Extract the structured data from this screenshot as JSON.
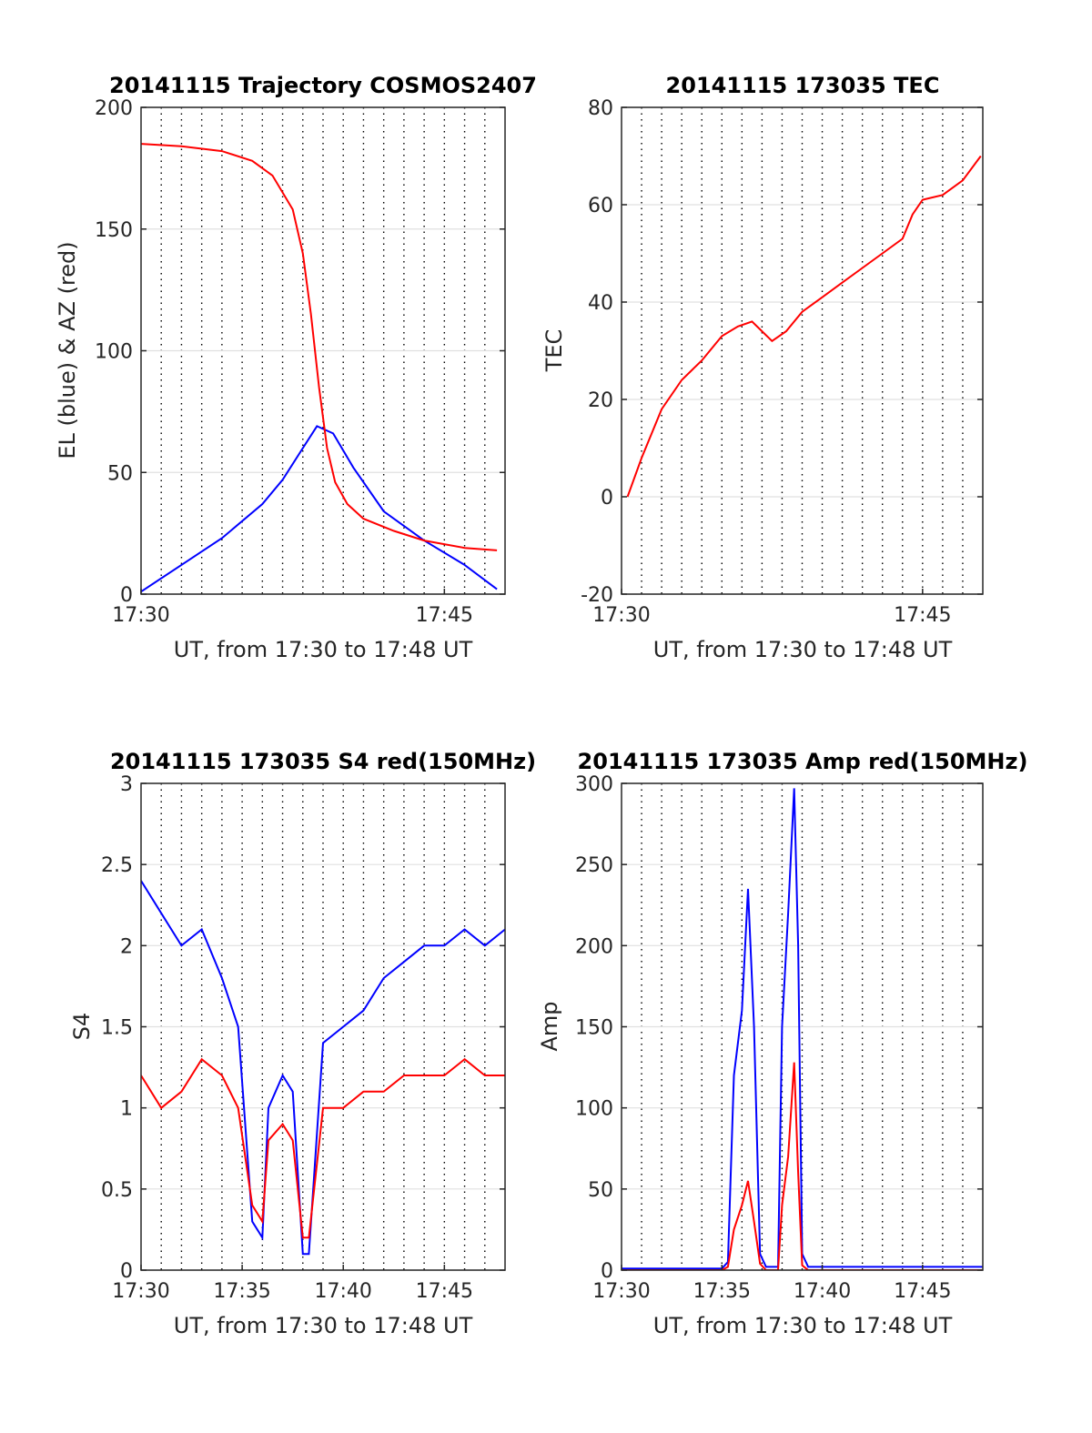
{
  "colors": {
    "red": "#ff0000",
    "blue": "#0000ff",
    "grid": "#000000",
    "axis": "#262626"
  },
  "chart_data": [
    {
      "type": "line",
      "title": "20141115 Trajectory COSMOS2407",
      "xlabel": "UT, from 17:30 to 17:48 UT",
      "ylabel": "EL (blue) & AZ (red)",
      "xlim": [
        "17:30",
        "17:48"
      ],
      "ylim": [
        0,
        200
      ],
      "yticks": [
        "0",
        "50",
        "100",
        "150",
        "200"
      ],
      "xticks": [
        "17:30",
        "17:45"
      ],
      "grid": "vertical dotted every minute; horizontal at y ticks",
      "series": [
        {
          "color": "#0000ff",
          "x": [
            0.0,
            2.0,
            4.0,
            6.0,
            7.0,
            8.0,
            8.7,
            9.5,
            10.5,
            12.0,
            14.0,
            16.0,
            17.6
          ],
          "y": [
            1,
            12,
            23,
            37,
            47,
            60,
            69,
            66,
            52,
            34,
            22,
            12,
            2
          ]
        },
        {
          "color": "#ff0000",
          "x": [
            0.0,
            2.0,
            4.0,
            5.5,
            6.5,
            7.5,
            8.0,
            8.4,
            8.8,
            9.2,
            9.6,
            10.2,
            11.0,
            12.5,
            14.0,
            16.0,
            17.6
          ],
          "y": [
            185,
            184,
            182,
            178,
            172,
            158,
            140,
            115,
            85,
            60,
            46,
            37,
            31,
            26,
            22,
            19,
            18
          ]
        }
      ]
    },
    {
      "type": "line",
      "title": "20141115 173035 TEC",
      "xlabel": "UT, from 17:30 to 17:48 UT",
      "ylabel": "TEC",
      "xlim": [
        "17:30",
        "17:48"
      ],
      "ylim": [
        -20,
        80
      ],
      "yticks": [
        "-20",
        "0",
        "20",
        "40",
        "60",
        "80"
      ],
      "xticks": [
        "17:30",
        "17:45"
      ],
      "series": [
        {
          "color": "#ff0000",
          "x": [
            0.3,
            1.0,
            2.0,
            3.0,
            4.0,
            5.0,
            5.8,
            6.5,
            7.0,
            7.5,
            8.2,
            9.0,
            10.0,
            11.0,
            12.0,
            13.0,
            14.0,
            14.5,
            15.0,
            16.0,
            17.0,
            17.9
          ],
          "y": [
            0,
            8,
            18,
            24,
            28,
            33,
            35,
            36,
            34,
            32,
            34,
            38,
            41,
            44,
            47,
            50,
            53,
            58,
            61,
            62,
            65,
            70
          ]
        }
      ]
    },
    {
      "type": "line",
      "title": "20141115 173035 S4 red(150MHz)",
      "xlabel": "UT, from 17:30 to 17:48 UT",
      "ylabel": "S4",
      "xlim": [
        "17:30",
        "17:48"
      ],
      "ylim": [
        0,
        3
      ],
      "yticks": [
        "0",
        "0.5",
        "1",
        "1.5",
        "2",
        "2.5",
        "3"
      ],
      "xticks": [
        "17:30",
        "17:35",
        "17:40",
        "17:45"
      ],
      "series": [
        {
          "color": "#0000ff",
          "description_free": true,
          "x": [
            0,
            1,
            2,
            3,
            4,
            4.8,
            5.5,
            6.0,
            6.3,
            7.0,
            7.5,
            8.0,
            8.3,
            9.0,
            10.0,
            11.0,
            12.0,
            13.0,
            14.0,
            15.0,
            16.0,
            17.0,
            18.0
          ],
          "y": [
            2.4,
            2.2,
            2.0,
            2.1,
            1.8,
            1.5,
            0.3,
            0.2,
            1.0,
            1.2,
            1.1,
            0.1,
            0.1,
            1.4,
            1.5,
            1.6,
            1.8,
            1.9,
            2.0,
            2.0,
            2.1,
            2.0,
            2.1
          ]
        },
        {
          "color": "#ff0000",
          "x": [
            0,
            1,
            2,
            3,
            4,
            4.8,
            5.5,
            6.0,
            6.3,
            7.0,
            7.5,
            8.0,
            8.3,
            9.0,
            10.0,
            11.0,
            12.0,
            13.0,
            14.0,
            15.0,
            16.0,
            17.0,
            18.0
          ],
          "y": [
            1.2,
            1.0,
            1.1,
            1.3,
            1.2,
            1.0,
            0.4,
            0.3,
            0.8,
            0.9,
            0.8,
            0.2,
            0.2,
            1.0,
            1.0,
            1.1,
            1.1,
            1.2,
            1.2,
            1.2,
            1.3,
            1.2,
            1.2
          ]
        }
      ]
    },
    {
      "type": "line",
      "title": "20141115 173035 Amp red(150MHz)",
      "xlabel": "UT, from 17:30 to 17:48 UT",
      "ylabel": "Amp",
      "xlim": [
        "17:30",
        "17:48"
      ],
      "ylim": [
        0,
        300
      ],
      "yticks": [
        "0",
        "50",
        "100",
        "150",
        "200",
        "250",
        "300"
      ],
      "xticks": [
        "17:30",
        "17:35",
        "17:40",
        "17:45"
      ],
      "series": [
        {
          "color": "#0000ff",
          "x": [
            0,
            5.0,
            5.3,
            5.6,
            6.0,
            6.3,
            6.6,
            6.9,
            7.2,
            7.8,
            8.0,
            8.3,
            8.6,
            8.8,
            9.0,
            9.3,
            10,
            12,
            14,
            16,
            18
          ],
          "y": [
            1,
            1,
            5,
            120,
            160,
            235,
            150,
            10,
            2,
            2,
            150,
            220,
            297,
            200,
            10,
            2,
            2,
            2,
            2,
            2,
            2
          ]
        },
        {
          "color": "#ff0000",
          "x": [
            0,
            5.0,
            5.3,
            5.6,
            6.0,
            6.3,
            6.6,
            6.9,
            7.2,
            7.8,
            8.0,
            8.3,
            8.6,
            8.8,
            9.0,
            9.3,
            10,
            18
          ],
          "y": [
            0,
            0,
            2,
            25,
            40,
            55,
            30,
            4,
            0,
            0,
            40,
            70,
            128,
            60,
            3,
            0,
            0,
            0
          ]
        }
      ]
    }
  ]
}
